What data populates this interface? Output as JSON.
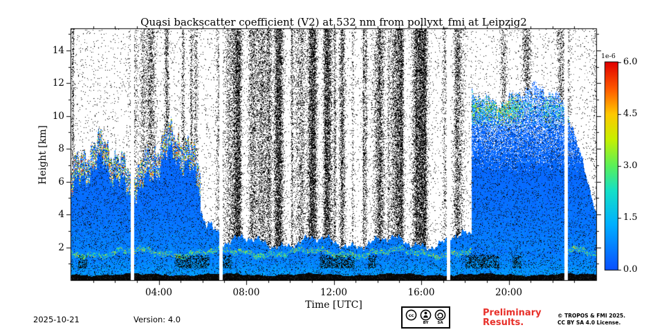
{
  "chart_data": {
    "type": "heatmap",
    "title": "Quasi backscatter coefficient (V2) at 532 nm from pollyxt_fmi at Leipzig2",
    "xlabel": "Time [UTC]",
    "ylabel": "Height [km]",
    "x_range": [
      0,
      24
    ],
    "x_ticks": [
      {
        "hour": 4,
        "label": "04:00"
      },
      {
        "hour": 8,
        "label": "08:00"
      },
      {
        "hour": 12,
        "label": "12:00"
      },
      {
        "hour": 16,
        "label": "16:00"
      },
      {
        "hour": 20,
        "label": "20:00"
      }
    ],
    "y_range": [
      0,
      15.3
    ],
    "y_ticks": [
      2,
      4,
      6,
      8,
      10,
      12,
      14
    ],
    "grid": false,
    "colorbar": {
      "exponent_label": "1e-6",
      "range": [
        0,
        6
      ],
      "ticks": [
        {
          "value": 6.0,
          "label": "6.0"
        },
        {
          "value": 4.5,
          "label": "4.5"
        },
        {
          "value": 3.0,
          "label": "3.0"
        },
        {
          "value": 1.5,
          "label": "1.5"
        },
        {
          "value": 0.0,
          "label": "0.0"
        }
      ],
      "gradient_stops": [
        {
          "t": 0.0,
          "color": "#0a50ff"
        },
        {
          "t": 0.22,
          "color": "#00b0ff"
        },
        {
          "t": 0.38,
          "color": "#14e0c8"
        },
        {
          "t": 0.5,
          "color": "#5af05a"
        },
        {
          "t": 0.63,
          "color": "#c8f000"
        },
        {
          "t": 0.75,
          "color": "#ffc800"
        },
        {
          "t": 0.87,
          "color": "#ff5a00"
        },
        {
          "t": 1.0,
          "color": "#e10000"
        }
      ]
    },
    "data_gaps_hours": [
      [
        2.72,
        2.87
      ],
      [
        6.78,
        6.93
      ],
      [
        17.18,
        17.33
      ],
      [
        22.55,
        22.7
      ]
    ],
    "bottom_black_band_km": 0.28,
    "boundary_layer": {
      "top_min_km": 1.5,
      "top_max_km": 2.15
    },
    "regions": [
      {
        "t0": 0.0,
        "t1": 2.72,
        "top": 7.8,
        "style": "cloud",
        "bright_top": true,
        "crust": true
      },
      {
        "t0": 2.87,
        "t1": 5.9,
        "top": 8.3,
        "style": "cloud",
        "bright_top": true,
        "crust": true
      },
      {
        "t0": 5.9,
        "t1": 6.78,
        "top": 5.0,
        "top_end": 3.0,
        "style": "cloud",
        "crust": true
      },
      {
        "t0": 6.93,
        "t1": 17.18,
        "top": 2.4,
        "style": "shallow",
        "crust": true
      },
      {
        "t0": 17.33,
        "t1": 18.3,
        "top": 2.6,
        "style": "shallow",
        "crust": true
      },
      {
        "t0": 18.3,
        "t1": 22.55,
        "top": 11.4,
        "style": "deep",
        "bright_band": [
          9.2,
          11.6
        ]
      },
      {
        "t0": 22.7,
        "t1": 24.01,
        "top": 11.0,
        "top_end": 4.0,
        "style": "deep",
        "bright_band": [
          9.4,
          11.2
        ],
        "crust": true
      }
    ],
    "noise": {
      "base_speckle_density": 0.035,
      "stripe_count": 55,
      "stripe_density_max": 0.55
    }
  },
  "footer": {
    "date": "2025-10-21",
    "version": "Version: 4.0",
    "preliminary": [
      "Preliminary",
      "Results."
    ],
    "preliminary_color": "#e8302a",
    "copyright": "© TROPOS & FMI 2025.",
    "license": "CC BY SA 4.0 License."
  },
  "license_badge": {
    "cc": "cc",
    "by": "BY",
    "sa": "SA"
  }
}
